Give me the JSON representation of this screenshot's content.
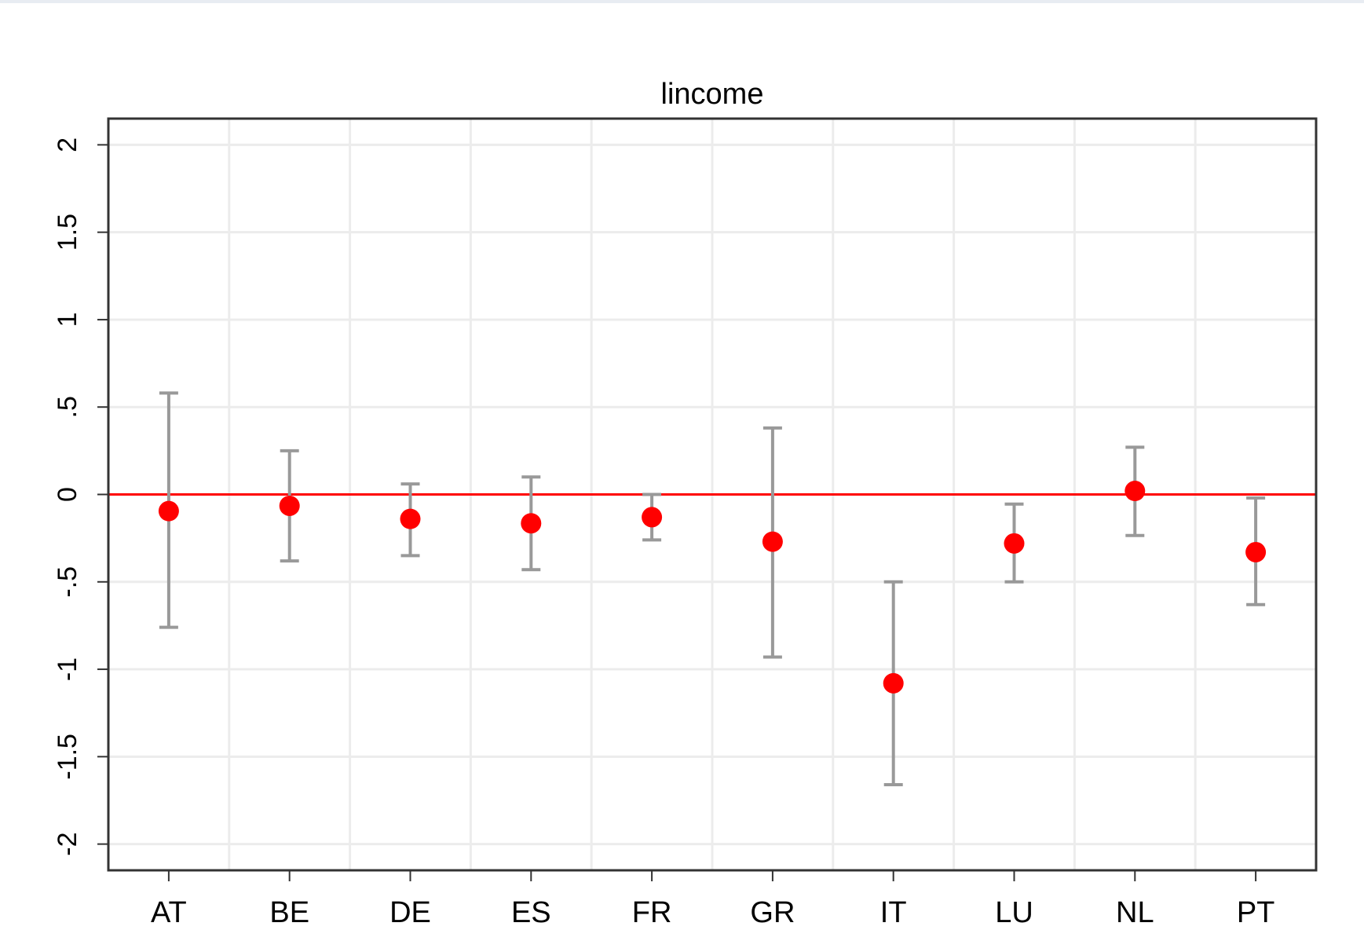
{
  "chart_data": {
    "type": "errorbar",
    "title": "lincome",
    "categories": [
      "AT",
      "BE",
      "DE",
      "ES",
      "FR",
      "GR",
      "IT",
      "LU",
      "NL",
      "PT"
    ],
    "series": [
      {
        "color": "#ff0000",
        "error_color": "#999999",
        "values": [
          -0.095,
          -0.065,
          -0.14,
          -0.165,
          -0.13,
          -0.27,
          -1.08,
          -0.28,
          0.02,
          -0.33
        ],
        "lower": [
          -0.76,
          -0.38,
          -0.35,
          -0.43,
          -0.26,
          -0.93,
          -1.66,
          -0.5,
          -0.235,
          -0.63
        ],
        "upper": [
          0.58,
          0.25,
          0.06,
          0.1,
          0,
          0.38,
          -0.5,
          -0.055,
          0.27,
          -0.02
        ]
      }
    ],
    "reference_line": {
      "value": 0,
      "color": "#ff0000"
    },
    "ylim": [
      -2.15,
      2.15
    ],
    "yticks": [
      -2,
      -1.5,
      -1,
      {
        "value": -0.5,
        "label": "-.5"
      },
      0,
      {
        "value": 0.5,
        "label": ".5"
      },
      1,
      1.5,
      2
    ],
    "grid": true
  }
}
